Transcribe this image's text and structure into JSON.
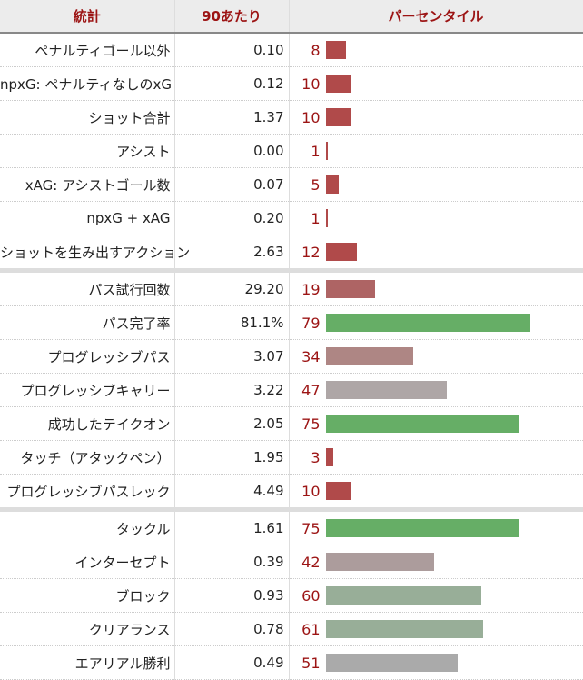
{
  "headers": {
    "stat": "統計",
    "per90": "90あたり",
    "percentile": "パーセンタイル"
  },
  "rows": [
    {
      "stat": "ペナルティゴール以外",
      "per90": "0.10",
      "pct": 8,
      "color": "#b04a4a"
    },
    {
      "stat": "npxG: ペナルティなしのxG",
      "per90": "0.12",
      "pct": 10,
      "color": "#b04a4a"
    },
    {
      "stat": "ショット合計",
      "per90": "1.37",
      "pct": 10,
      "color": "#b04a4a"
    },
    {
      "stat": "アシスト",
      "per90": "0.00",
      "pct": 1,
      "color": "#b04a4a"
    },
    {
      "stat": "xAG: アシストゴール数",
      "per90": "0.07",
      "pct": 5,
      "color": "#b04a4a"
    },
    {
      "stat": "npxG + xAG",
      "per90": "0.20",
      "pct": 1,
      "color": "#b04a4a"
    },
    {
      "stat": "ショットを生み出すアクション",
      "per90": "2.63",
      "pct": 12,
      "color": "#b04a4a"
    },
    {
      "stat": "パス試行回数",
      "per90": "29.20",
      "pct": 19,
      "color": "#ae6464",
      "sep": true
    },
    {
      "stat": "パス完了率",
      "per90": "81.1%",
      "pct": 79,
      "color": "#66ae66"
    },
    {
      "stat": "プログレッシブパス",
      "per90": "3.07",
      "pct": 34,
      "color": "#ae8684"
    },
    {
      "stat": "プログレッシブキャリー",
      "per90": "3.22",
      "pct": 47,
      "color": "#aea6a6"
    },
    {
      "stat": "成功したテイクオン",
      "per90": "2.05",
      "pct": 75,
      "color": "#66ae66"
    },
    {
      "stat": "タッチ（アタックペン）",
      "per90": "1.95",
      "pct": 3,
      "color": "#b04a4a"
    },
    {
      "stat": "プログレッシブパスレック",
      "per90": "4.49",
      "pct": 10,
      "color": "#b04a4a"
    },
    {
      "stat": "タックル",
      "per90": "1.61",
      "pct": 75,
      "color": "#66ae66",
      "sep": true
    },
    {
      "stat": "インターセプト",
      "per90": "0.39",
      "pct": 42,
      "color": "#ac9c9c"
    },
    {
      "stat": "ブロック",
      "per90": "0.93",
      "pct": 60,
      "color": "#98ae98"
    },
    {
      "stat": "クリアランス",
      "per90": "0.78",
      "pct": 61,
      "color": "#98ae98"
    },
    {
      "stat": "エアリアル勝利",
      "per90": "0.49",
      "pct": 51,
      "color": "#aaaaaa"
    }
  ]
}
